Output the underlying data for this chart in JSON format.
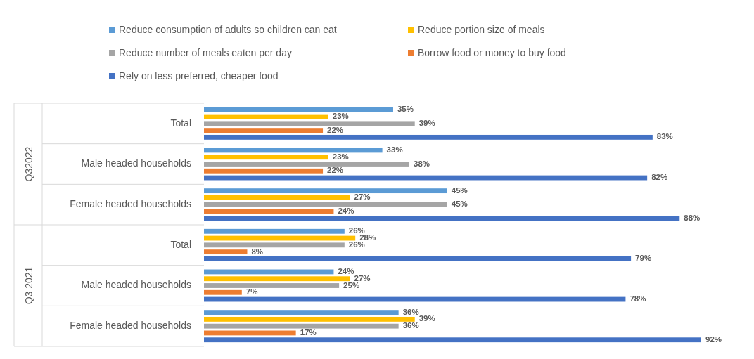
{
  "chart_data": {
    "type": "bar",
    "orientation": "horizontal",
    "legend": "top",
    "categories": [
      "Total",
      "Male headed households",
      "Female headed households",
      "Total",
      "Male headed households",
      "Female headed households"
    ],
    "annotations": [
      "Q32022",
      "Q3 2021"
    ],
    "series": [
      {
        "name": "Reduce consumption of adults so children can eat",
        "color": "#5b9bd5",
        "values": [
          35,
          33,
          45,
          26,
          24,
          36
        ],
        "value_labels": [
          "35%",
          "33%",
          "45%",
          "26%",
          "24%",
          "36%"
        ]
      },
      {
        "name": "Reduce portion size of meals",
        "color": "#ffc000",
        "values": [
          23,
          23,
          27,
          28,
          27,
          39
        ],
        "value_labels": [
          "23%",
          "23%",
          "27%",
          "28%",
          "27%",
          "39%"
        ]
      },
      {
        "name": "Reduce number of meals eaten per day",
        "color": "#a5a5a5",
        "values": [
          39,
          38,
          45,
          26,
          25,
          36
        ],
        "value_labels": [
          "39%",
          "38%",
          "45%",
          "26%",
          "25%",
          "36%"
        ]
      },
      {
        "name": "Borrow food or money to buy food",
        "color": "#ed7d31",
        "values": [
          22,
          22,
          24,
          8,
          7,
          17
        ],
        "value_labels": [
          "22%",
          "22%",
          "24%",
          "8%",
          "7%",
          "17%"
        ]
      },
      {
        "name": "Rely on less preferred, cheaper food",
        "color": "#4472c4",
        "values": [
          83,
          82,
          88,
          79,
          78,
          92
        ],
        "value_labels": [
          "83%",
          "82%",
          "88%",
          "79%",
          "78%",
          "92%"
        ]
      }
    ]
  }
}
